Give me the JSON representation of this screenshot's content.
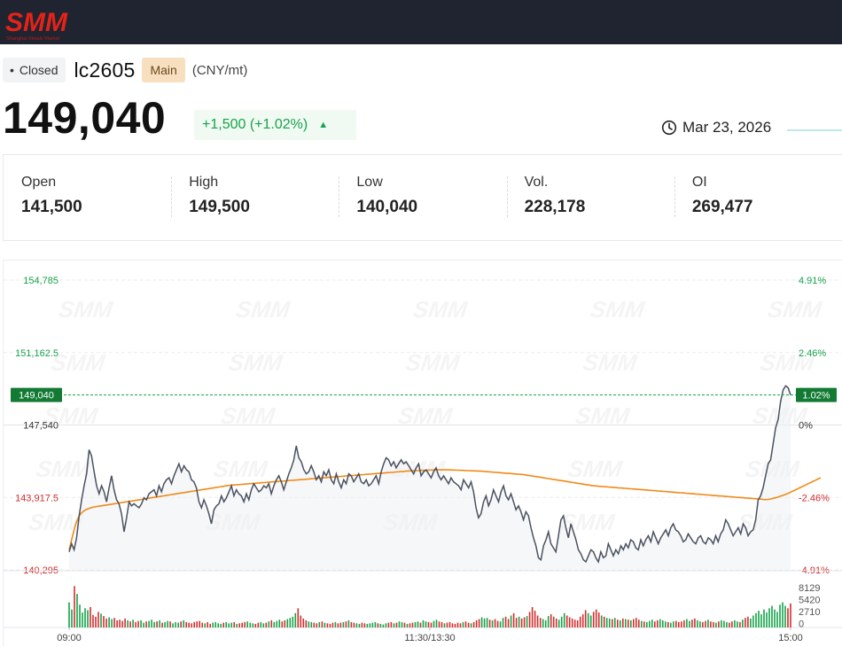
{
  "header": {
    "logo_text": "SMM",
    "logo_subtext": "Shanghai Metals Market"
  },
  "quote": {
    "status": "Closed",
    "symbol": "lc2605",
    "contract_badge": "Main",
    "unit": "(CNY/mt)",
    "price": "149,040",
    "change": "+1,500 (+1.02%)",
    "date": "Mar 23, 2026"
  },
  "stats": [
    {
      "label": "Open",
      "value": "141,500"
    },
    {
      "label": "High",
      "value": "149,500"
    },
    {
      "label": "Low",
      "value": "140,040"
    },
    {
      "label": "Vol.",
      "value": "228,178"
    },
    {
      "label": "OI",
      "value": "269,477"
    }
  ],
  "colors": {
    "up": "#17a34a",
    "down": "#d32f2f",
    "price_line": "#4a5160",
    "avg_line": "#ef8a17",
    "header_bg": "#1f2430",
    "logo_red": "#e2231a"
  },
  "chart_data": {
    "type": "line",
    "title": "",
    "xlabel": "",
    "ylabel": "",
    "x_ticks": [
      "09:00",
      "11:30/13:30",
      "15:00"
    ],
    "y_ticks_left": [
      "154,785",
      "151,162.5",
      "147,540",
      "143,917.5",
      "140,295"
    ],
    "y_ticks_right": [
      "4.91%",
      "2.46%",
      "0%",
      "-2.46%",
      "-4.91%"
    ],
    "ylim": [
      140295,
      154785
    ],
    "prev_settle": 147540,
    "last_price_label": "149,040",
    "last_pct_label": "1.02%",
    "volume_ticks": [
      "8129",
      "5420",
      "2710",
      "0"
    ],
    "volume_max": 8129,
    "series": [
      {
        "values": [
          141200,
          141600,
          141300,
          141900,
          143000,
          143800,
          144500,
          145100,
          146300,
          146000,
          145200,
          144500,
          144100,
          144500,
          144200,
          143700,
          144400,
          145000,
          144300,
          143800,
          143600,
          143100,
          142200,
          142900,
          143700,
          143500,
          143600,
          143500,
          143400,
          143600,
          143900,
          143800,
          144100,
          144200,
          144300,
          144000,
          144500,
          144200,
          144600,
          144800,
          144900,
          144600,
          145000,
          145300,
          145600,
          145200,
          145500,
          145300,
          145200,
          144800,
          144700,
          144400,
          143700,
          143400,
          143800,
          143500,
          143100,
          142600,
          143300,
          143500,
          143600,
          144000,
          143700,
          143900,
          144200,
          144500,
          144000,
          144300,
          144100,
          144000,
          143700,
          144100,
          143800,
          144300,
          144600,
          144400,
          144200,
          144300,
          144500,
          144400,
          144600,
          144100,
          144500,
          144800,
          145000,
          144700,
          144300,
          144700,
          145100,
          145400,
          145800,
          146500,
          145900,
          145700,
          145300,
          145100,
          145200,
          145500,
          145200,
          144800,
          145000,
          144700,
          145200,
          145000,
          145300,
          144800,
          144600,
          145100,
          144700,
          144400,
          144800,
          144600,
          145100,
          145000,
          144700,
          144900,
          145100,
          144700,
          144600,
          144800,
          144500,
          144600,
          144800,
          145000,
          144600,
          145200,
          145600,
          145900,
          145800,
          145500,
          145700,
          145400,
          145600,
          145800,
          145600,
          145700,
          145500,
          145300,
          145100,
          145400,
          145600,
          145000,
          145200,
          145300,
          145100,
          144900,
          145200,
          145400,
          145000,
          144800,
          145000,
          144800,
          144600,
          144900,
          144700,
          144600,
          144500,
          144300,
          144800,
          144600,
          144400,
          144700,
          144200,
          143400,
          142900,
          143100,
          143700,
          144000,
          143500,
          143800,
          144300,
          144000,
          143700,
          144200,
          144500,
          144000,
          143800,
          144100,
          143700,
          143300,
          143500,
          143200,
          142800,
          143200,
          143000,
          142400,
          141900,
          141500,
          140900,
          140800,
          141500,
          141800,
          142200,
          141600,
          141400,
          141200,
          142000,
          142800,
          143000,
          142400,
          141900,
          142600,
          142200,
          141800,
          141300,
          141100,
          140800,
          140700,
          141000,
          141300,
          141200,
          140900,
          140700,
          141200,
          140900,
          141000,
          141600,
          141300,
          141000,
          141300,
          141100,
          141500,
          141300,
          141600,
          141400,
          141800,
          141700,
          141400,
          141300,
          141800,
          141500,
          141800,
          142000,
          141700,
          142200,
          141900,
          141600,
          141900,
          142100,
          142300,
          142000,
          142400,
          142600,
          142300,
          142200,
          142000,
          141700,
          141800,
          142100,
          141900,
          141700,
          141600,
          141900,
          142000,
          141700,
          141600,
          141900,
          141800,
          141600,
          142000,
          141700,
          142100,
          142300,
          142800,
          142600,
          142300,
          142000,
          142200,
          142400,
          142100,
          142600,
          142400,
          142000,
          142200,
          142300,
          142800,
          143800,
          144000,
          144400,
          145000,
          145600,
          145800,
          146600,
          147400,
          147800,
          148700,
          149300,
          149500,
          149400,
          149040
        ]
      },
      {
        "values": [
          141300,
          141800,
          142300,
          142700,
          143000,
          143150,
          143250,
          143320,
          143370,
          143410,
          143440,
          143460,
          143480,
          143500,
          143520,
          143540,
          143560,
          143580,
          143600,
          143620,
          143640,
          143660,
          143680,
          143700,
          143720,
          143740,
          143760,
          143780,
          143800,
          143820,
          143840,
          143860,
          143880,
          143900,
          143920,
          143940,
          143960,
          143980,
          144000,
          144020,
          144040,
          144060,
          144080,
          144100,
          144120,
          144140,
          144160,
          144180,
          144200,
          144220,
          144240,
          144260,
          144280,
          144300,
          144320,
          144340,
          144360,
          144380,
          144400,
          144420,
          144440,
          144460,
          144480,
          144500,
          144520,
          144530,
          144540,
          144550,
          144560,
          144570,
          144580,
          144590,
          144600,
          144610,
          144620,
          144630,
          144640,
          144650,
          144660,
          144670,
          144680,
          144690,
          144700,
          144710,
          144720,
          144730,
          144740,
          144750,
          144760,
          144770,
          144780,
          144790,
          144800,
          144810,
          144820,
          144830,
          144840,
          144850,
          144860,
          144870,
          144880,
          144890,
          144900,
          144910,
          144920,
          144930,
          144940,
          144950,
          144960,
          144970,
          144980,
          144990,
          145000,
          145010,
          145020,
          145030,
          145040,
          145050,
          145060,
          145070,
          145080,
          145090,
          145100,
          145110,
          145120,
          145130,
          145140,
          145150,
          145160,
          145170,
          145180,
          145190,
          145200,
          145210,
          145220,
          145230,
          145240,
          145250,
          145250,
          145260,
          145260,
          145270,
          145270,
          145280,
          145280,
          145290,
          145290,
          145300,
          145300,
          145300,
          145300,
          145300,
          145300,
          145290,
          145290,
          145280,
          145280,
          145270,
          145270,
          145260,
          145260,
          145250,
          145250,
          145240,
          145240,
          145230,
          145220,
          145210,
          145200,
          145190,
          145180,
          145170,
          145160,
          145150,
          145140,
          145130,
          145120,
          145110,
          145100,
          145090,
          145080,
          145070,
          145060,
          145040,
          145020,
          145000,
          144980,
          144960,
          144940,
          144920,
          144900,
          144880,
          144860,
          144840,
          144820,
          144800,
          144780,
          144760,
          144740,
          144720,
          144700,
          144680,
          144660,
          144640,
          144620,
          144600,
          144580,
          144560,
          144540,
          144520,
          144500,
          144490,
          144480,
          144470,
          144460,
          144450,
          144440,
          144430,
          144420,
          144410,
          144400,
          144390,
          144380,
          144370,
          144360,
          144350,
          144340,
          144330,
          144320,
          144310,
          144300,
          144290,
          144280,
          144270,
          144260,
          144250,
          144240,
          144230,
          144220,
          144210,
          144200,
          144190,
          144180,
          144170,
          144160,
          144150,
          144140,
          144130,
          144120,
          144110,
          144100,
          144090,
          144080,
          144070,
          144060,
          144050,
          144040,
          144030,
          144020,
          144010,
          144000,
          143990,
          143980,
          143970,
          143960,
          143950,
          143940,
          143930,
          143920,
          143910,
          143900,
          143890,
          143880,
          143870,
          143860,
          143850,
          143840,
          143830,
          143820,
          143810,
          143820,
          143840,
          143870,
          143900,
          143940,
          143980,
          144020,
          144070,
          144120,
          144180,
          144240,
          144300,
          144360,
          144420,
          144480,
          144540,
          144600,
          144660,
          144720,
          144780,
          144840,
          144900
        ]
      }
    ],
    "volume": [
      4200,
      3000,
      6900,
      5600,
      3800,
      2500,
      3200,
      2900,
      3400,
      2100,
      1800,
      2600,
      2300,
      1900,
      1500,
      1700,
      1400,
      1600,
      1200,
      1300,
      1100,
      1500,
      1200,
      1000,
      1300,
      900,
      1100,
      1200,
      800,
      1000,
      1100,
      1300,
      900,
      1000,
      1200,
      800,
      900,
      1100,
      1000,
      700,
      900,
      800,
      1000,
      1200,
      900,
      800,
      700,
      900,
      1000,
      1100,
      800,
      700,
      900,
      600,
      800,
      900,
      700,
      600,
      800,
      900,
      700,
      800,
      900,
      600,
      700,
      800,
      900,
      1000,
      800,
      700,
      600,
      800,
      900,
      700,
      800,
      1000,
      1200,
      900,
      1100,
      1300,
      1000,
      1200,
      1400,
      1600,
      1800,
      2400,
      3200,
      2000,
      1500,
      1200,
      1000,
      900,
      800,
      700,
      900,
      1000,
      800,
      700,
      600,
      800,
      900,
      700,
      800,
      900,
      1000,
      1200,
      900,
      800,
      700,
      600,
      800,
      700,
      600,
      700,
      800,
      900,
      700,
      600,
      500,
      700,
      800,
      900,
      700,
      800,
      1000,
      900,
      800,
      600,
      700,
      800,
      900,
      1000,
      800,
      1200,
      1000,
      900,
      800,
      1100,
      1300,
      1000,
      900,
      700,
      800,
      900,
      700,
      600,
      800,
      700,
      900,
      1000,
      800,
      700,
      900,
      1200,
      1400,
      1700,
      1500,
      1600,
      1300,
      1200,
      1400,
      1100,
      1000,
      1600,
      1800,
      1400,
      2000,
      2400,
      1600,
      1800,
      1500,
      1700,
      1900,
      2600,
      3400,
      2800,
      2000,
      1600,
      1400,
      1200,
      1900,
      2200,
      1800,
      1500,
      1300,
      1800,
      2400,
      2000,
      1700,
      1500,
      1300,
      1200,
      1800,
      2200,
      2900,
      2400,
      2000,
      2600,
      3000,
      2500,
      2000,
      1800,
      1600,
      1500,
      1400,
      1600,
      1300,
      1200,
      1500,
      1400,
      1300,
      1200,
      1400,
      1600,
      1300,
      1100,
      1000,
      900,
      1100,
      1300,
      1000,
      1200,
      1400,
      1200,
      1000,
      900,
      800,
      1000,
      1100,
      900,
      1000,
      1200,
      1400,
      1100,
      1300,
      1500,
      1200,
      1000,
      900,
      1100,
      1300,
      1000,
      900,
      800,
      1000,
      1200,
      1100,
      900,
      800,
      1000,
      1200,
      1000,
      900,
      1300,
      1600,
      1800,
      1500,
      2000,
      2400,
      2800,
      2200,
      3000,
      2500,
      3200,
      3600,
      3000,
      2600,
      3800,
      4200,
      3600,
      3200,
      4000
    ]
  }
}
